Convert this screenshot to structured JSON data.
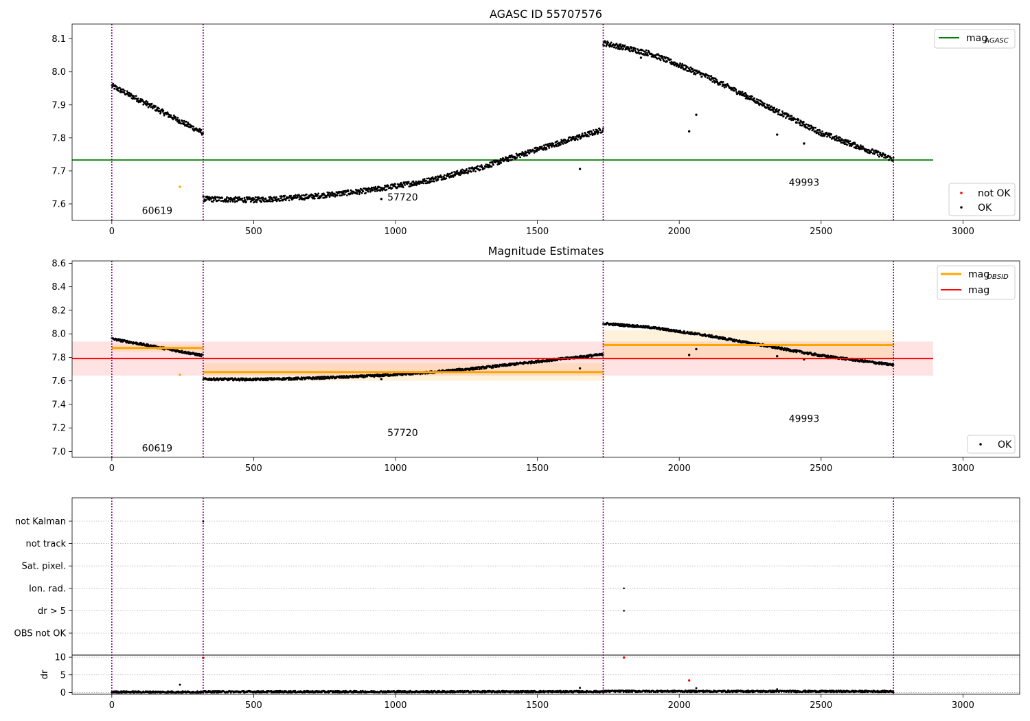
{
  "chart_data": [
    {
      "type": "scatter",
      "title": "AGASC ID 55707576",
      "xlabel": "",
      "ylabel": "",
      "xlim": [
        -140,
        3200
      ],
      "ylim": [
        7.55,
        8.145
      ],
      "xticks": [
        0,
        500,
        1000,
        1500,
        2000,
        2500,
        3000
      ],
      "yticks": [
        7.6,
        7.7,
        7.8,
        7.9,
        8.0,
        8.1
      ],
      "grid": false,
      "obsid_boundaries": [
        0,
        322,
        1732,
        2755
      ],
      "obsid_labels": [
        {
          "text": "60619",
          "x": 160,
          "y": 7.57
        },
        {
          "text": "57720",
          "x": 1025,
          "y": 7.61
        },
        {
          "text": "49993",
          "x": 2440,
          "y": 7.655
        }
      ],
      "lines": [
        {
          "name": "mag_AGASC",
          "color": "#008000",
          "y": 7.733,
          "x": [
            -140,
            2895
          ]
        }
      ],
      "ok_trend": [
        {
          "x": [
            0,
            322
          ],
          "y": [
            7.958,
            7.815
          ]
        },
        {
          "x": [
            322,
            500,
            700,
            900,
            1100,
            1300,
            1500,
            1732
          ],
          "y": [
            7.615,
            7.612,
            7.622,
            7.64,
            7.668,
            7.71,
            7.765,
            7.825
          ]
        },
        {
          "x": [
            1732,
            1900,
            2100,
            2300,
            2500,
            2755
          ],
          "y": [
            8.088,
            8.055,
            7.985,
            7.9,
            7.815,
            7.735
          ]
        }
      ],
      "ok_outliers": [
        {
          "x": 950,
          "y": 7.615
        },
        {
          "x": 1650,
          "y": 7.706
        },
        {
          "x": 1865,
          "y": 8.043
        },
        {
          "x": 2035,
          "y": 7.82
        },
        {
          "x": 2060,
          "y": 7.87
        },
        {
          "x": 2345,
          "y": 7.81
        },
        {
          "x": 2440,
          "y": 7.783
        }
      ],
      "not_ok_points": [
        {
          "x": 240,
          "y": 7.652
        }
      ],
      "legend_top": {
        "position": "top-right",
        "label_main": "mag",
        "label_sub": "AGASC",
        "color": "#008000"
      },
      "legend_bottom": {
        "position": "bottom-right",
        "entries": [
          {
            "label": "not OK",
            "color": "#ff0000"
          },
          {
            "label": "OK",
            "color": "#000000"
          }
        ]
      }
    },
    {
      "type": "scatter",
      "title": "Magnitude Estimates",
      "xlabel": "",
      "ylabel": "",
      "xlim": [
        -140,
        3200
      ],
      "ylim": [
        6.95,
        8.62
      ],
      "xticks": [
        0,
        500,
        1000,
        1500,
        2000,
        2500,
        3000
      ],
      "yticks": [
        7.0,
        7.2,
        7.4,
        7.6,
        7.8,
        8.0,
        8.2,
        8.4,
        8.6
      ],
      "grid": false,
      "obsid_boundaries": [
        0,
        322,
        1732,
        2755
      ],
      "obsid_labels": [
        {
          "text": "60619",
          "x": 160,
          "y": 7.0
        },
        {
          "text": "57720",
          "x": 1025,
          "y": 7.13
        },
        {
          "text": "49993",
          "x": 2440,
          "y": 7.25
        }
      ],
      "mag": {
        "y": 7.79,
        "band": [
          7.645,
          7.935
        ],
        "x": [
          -140,
          2895
        ],
        "color": "#ff0000"
      },
      "mag_obsid": [
        {
          "x": [
            0,
            322
          ],
          "y": 7.88,
          "band": [
            7.85,
            7.91
          ]
        },
        {
          "x": [
            322,
            1732
          ],
          "y": 7.675,
          "band": [
            7.6,
            7.75
          ]
        },
        {
          "x": [
            1732,
            2755
          ],
          "y": 7.905,
          "band": [
            7.78,
            8.03
          ]
        }
      ],
      "ok_trend": [
        {
          "x": [
            0,
            322
          ],
          "y": [
            7.958,
            7.815
          ]
        },
        {
          "x": [
            322,
            500,
            700,
            900,
            1100,
            1300,
            1500,
            1732
          ],
          "y": [
            7.615,
            7.612,
            7.622,
            7.64,
            7.668,
            7.71,
            7.765,
            7.825
          ]
        },
        {
          "x": [
            1732,
            1900,
            2100,
            2300,
            2500,
            2755
          ],
          "y": [
            8.088,
            8.055,
            7.985,
            7.9,
            7.815,
            7.735
          ]
        }
      ],
      "ok_outliers": [
        {
          "x": 950,
          "y": 7.615
        },
        {
          "x": 1650,
          "y": 7.706
        },
        {
          "x": 2035,
          "y": 7.82
        },
        {
          "x": 2060,
          "y": 7.87
        },
        {
          "x": 2345,
          "y": 7.81
        },
        {
          "x": 2440,
          "y": 7.783
        }
      ],
      "not_ok_points": [
        {
          "x": 240,
          "y": 7.652
        }
      ],
      "legend_top": {
        "position": "top-right",
        "entries": [
          {
            "label_main": "mag",
            "label_sub": "OBSID",
            "color": "#ffa500"
          },
          {
            "label_main": "mag",
            "label_sub": "",
            "color": "#ff0000"
          }
        ]
      },
      "legend_bottom": {
        "position": "bottom-right",
        "entries": [
          {
            "label": "OK",
            "color": "#000000"
          }
        ]
      }
    },
    {
      "type": "scatter",
      "title": "",
      "xlim": [
        -140,
        3200
      ],
      "xticks": [
        0,
        500,
        1000,
        1500,
        2000,
        2500,
        3000
      ],
      "obsid_boundaries": [
        0,
        322,
        1732,
        2755
      ],
      "flag_rows": [
        "not Kalman",
        "not track",
        "Sat. pixel.",
        "Ion. rad.",
        "dr > 5",
        "OBS not OK"
      ],
      "flag_points": [
        {
          "row": "not Kalman",
          "x": 322
        },
        {
          "row": "Ion. rad.",
          "x": 1805
        },
        {
          "row": "dr > 5",
          "x": 1805
        }
      ],
      "dr": {
        "ylabel": "dr",
        "ylim": [
          -0.5,
          10.6
        ],
        "yticks": [
          0,
          5,
          10
        ],
        "trend": [
          {
            "x": [
              0,
              322
            ],
            "y": [
              0.15,
              0.12
            ]
          },
          {
            "x": [
              322,
              1732
            ],
            "y": [
              0.2,
              0.25
            ]
          },
          {
            "x": [
              1732,
              2755
            ],
            "y": [
              0.35,
              0.3
            ]
          }
        ],
        "ok_outliers": [
          {
            "x": 240,
            "y": 2.2
          },
          {
            "x": 1650,
            "y": 1.3
          },
          {
            "x": 2060,
            "y": 1.2
          },
          {
            "x": 2345,
            "y": 0.9
          }
        ],
        "not_ok_points": [
          {
            "x": 322,
            "y": 9.8
          },
          {
            "x": 1805,
            "y": 9.9
          },
          {
            "x": 2035,
            "y": 3.4
          }
        ]
      }
    }
  ]
}
